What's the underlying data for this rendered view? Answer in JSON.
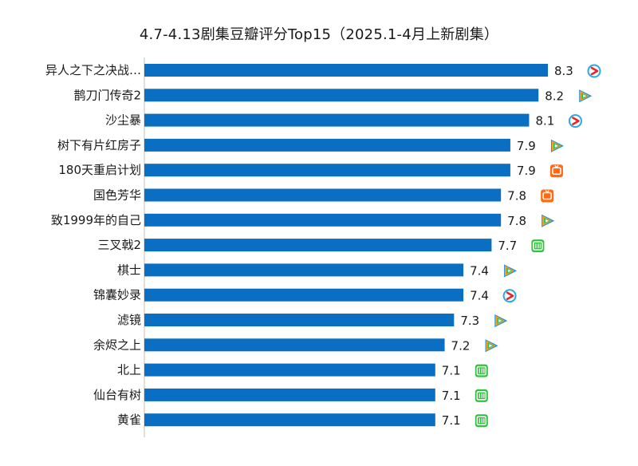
{
  "chart_data": {
    "type": "bar",
    "orientation": "horizontal",
    "title": "4.7-4.13剧集豆瓣评分Top15（2025.1-4月上新剧集）",
    "xlabel": "",
    "ylabel": "",
    "xlim": [
      4,
      8.5
    ],
    "grid": false,
    "legend": "none",
    "bar_color": "#0a6fc2",
    "categories": [
      "异人之下之决战…",
      "鹊刀门传奇2",
      "沙尘暴",
      "树下有片红房子",
      "180天重启计划",
      "国色芳华",
      "致1999年的自己",
      "三叉戟2",
      "棋士",
      "锦囊妙录",
      "滤镜",
      "余烬之上",
      "北上",
      "仙台有树",
      "黄雀"
    ],
    "values": [
      8.3,
      8.2,
      8.1,
      7.9,
      7.9,
      7.8,
      7.8,
      7.7,
      7.4,
      7.4,
      7.3,
      7.2,
      7.1,
      7.1,
      7.1
    ],
    "value_labels": [
      "8.3",
      "8.2",
      "8.1",
      "7.9",
      "7.9",
      "7.8",
      "7.8",
      "7.7",
      "7.4",
      "7.4",
      "7.3",
      "7.2",
      "7.1",
      "7.1",
      "7.1"
    ],
    "platform_icons": [
      "youku-icon",
      "tencent-video-icon",
      "youku-icon",
      "tencent-video-icon",
      "mango-tv-icon",
      "mango-tv-icon",
      "tencent-video-icon",
      "iqiyi-icon",
      "tencent-video-icon",
      "youku-icon",
      "tencent-video-icon",
      "tencent-video-icon",
      "iqiyi-icon",
      "iqiyi-icon",
      "iqiyi-icon"
    ]
  }
}
